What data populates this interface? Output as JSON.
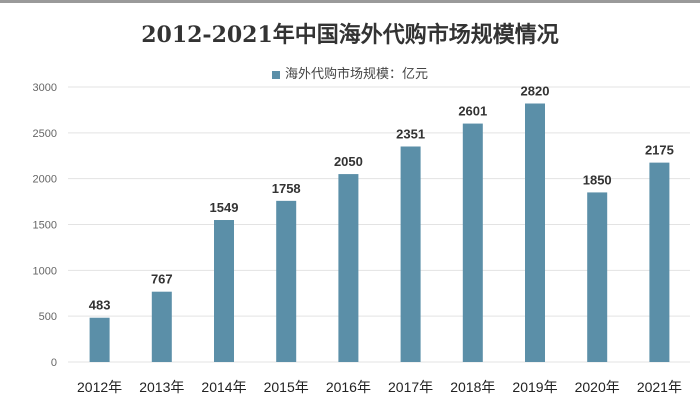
{
  "chart_data": {
    "type": "bar",
    "title": "2012-2021年中国海外代购市场规模情况",
    "categories": [
      "2012年",
      "2013年",
      "2014年",
      "2015年",
      "2016年",
      "2017年",
      "2018年",
      "2019年",
      "2020年",
      "2021年"
    ],
    "series": [
      {
        "name": "海外代购市场规模：亿元",
        "values": [
          483,
          767,
          1549,
          1758,
          2050,
          2351,
          2601,
          2820,
          1850,
          2175
        ]
      }
    ],
    "ylim": [
      0,
      3000
    ],
    "yticks": [
      0,
      500,
      1000,
      1500,
      2000,
      2500,
      3000
    ],
    "grid": true,
    "legend": "top",
    "bar_color": "#5b8fa8"
  }
}
